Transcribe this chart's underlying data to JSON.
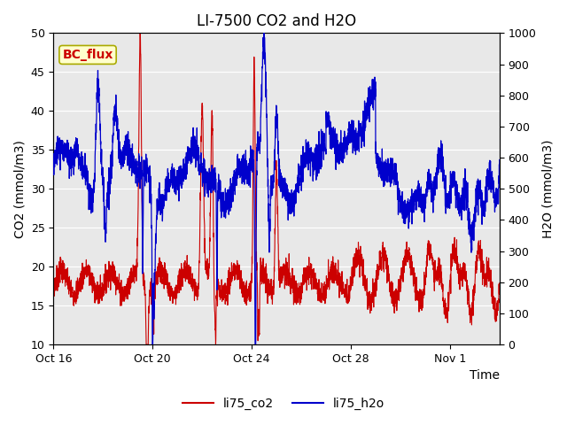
{
  "title": "LI-7500 CO2 and H2O",
  "ylabel_left": "CO2 (mmol/m3)",
  "ylabel_right": "H2O (mmol/m3)",
  "xlabel": "Time",
  "ylim_left": [
    10,
    50
  ],
  "ylim_right": [
    0,
    1000
  ],
  "yticks_left": [
    10,
    15,
    20,
    25,
    30,
    35,
    40,
    45,
    50
  ],
  "yticks_right": [
    0,
    100,
    200,
    300,
    400,
    500,
    600,
    700,
    800,
    900,
    1000
  ],
  "xtick_labels": [
    "Oct 16",
    "Oct 20",
    "Oct 24",
    "Oct 28",
    "Nov 1"
  ],
  "xtick_positions": [
    0,
    4,
    8,
    12,
    16
  ],
  "xlim": [
    0,
    18
  ],
  "color_co2": "#cc0000",
  "color_h2o": "#0000cc",
  "legend_label_co2": "li75_co2",
  "legend_label_h2o": "li75_h2o",
  "annotation_text": "BC_flux",
  "annotation_color": "#cc0000",
  "annotation_bg": "#ffffcc",
  "annotation_border": "#aaaa00",
  "background_color": "#e8e8e8",
  "title_fontsize": 12,
  "axis_fontsize": 10,
  "tick_fontsize": 9,
  "linewidth_co2": 0.8,
  "linewidth_h2o": 0.9
}
